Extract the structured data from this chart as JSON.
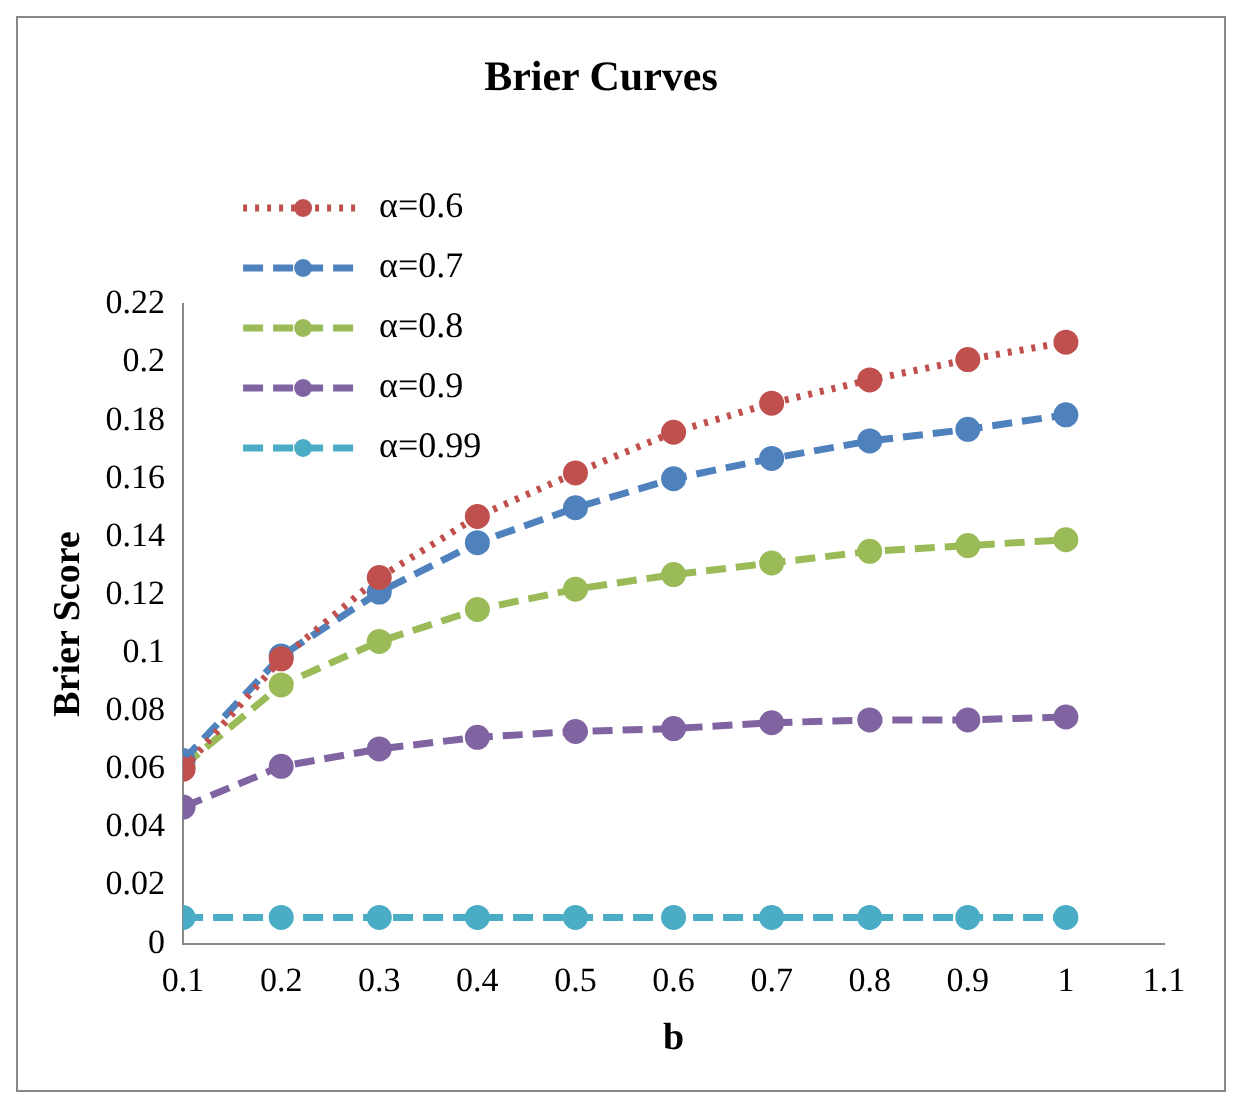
{
  "chart_data": {
    "type": "line",
    "title": "Brier Curves",
    "xlabel": "b",
    "ylabel": "Brier Score",
    "x": [
      0.1,
      0.2,
      0.3,
      0.4,
      0.5,
      0.6,
      0.7,
      0.8,
      0.9,
      1.0
    ],
    "series": [
      {
        "name": "α=0.6",
        "color": "#c0504d",
        "line_style": "dotted",
        "values": [
          0.06,
          0.098,
          0.126,
          0.147,
          0.162,
          0.176,
          0.186,
          0.194,
          0.201,
          0.207
        ]
      },
      {
        "name": "α=0.7",
        "color": "#4f81bd",
        "line_style": "dashed",
        "values": [
          0.063,
          0.099,
          0.121,
          0.138,
          0.15,
          0.16,
          0.167,
          0.173,
          0.177,
          0.182
        ]
      },
      {
        "name": "α=0.8",
        "color": "#9bbb59",
        "line_style": "dashed",
        "values": [
          0.061,
          0.089,
          0.104,
          0.115,
          0.122,
          0.127,
          0.131,
          0.135,
          0.137,
          0.139
        ]
      },
      {
        "name": "α=0.9",
        "color": "#8064a2",
        "line_style": "dashed",
        "values": [
          0.047,
          0.061,
          0.067,
          0.071,
          0.073,
          0.074,
          0.076,
          0.077,
          0.077,
          0.078
        ]
      },
      {
        "name": "α=0.99",
        "color": "#4bacc6",
        "line_style": "dashed",
        "values": [
          0.009,
          0.009,
          0.009,
          0.009,
          0.009,
          0.009,
          0.009,
          0.009,
          0.009,
          0.009
        ]
      }
    ],
    "xlim": [
      0.1,
      1.1
    ],
    "xticks": [
      0.1,
      0.2,
      0.3,
      0.4,
      0.5,
      0.6,
      0.7,
      0.8,
      0.9,
      1,
      1.1
    ],
    "ylim": [
      0,
      0.22
    ],
    "yticks": [
      0,
      0.02,
      0.04,
      0.06,
      0.08,
      0.1,
      0.12,
      0.14,
      0.16,
      0.18,
      0.2,
      0.22
    ],
    "grid": false,
    "legend": "top left",
    "marker": "circle"
  }
}
